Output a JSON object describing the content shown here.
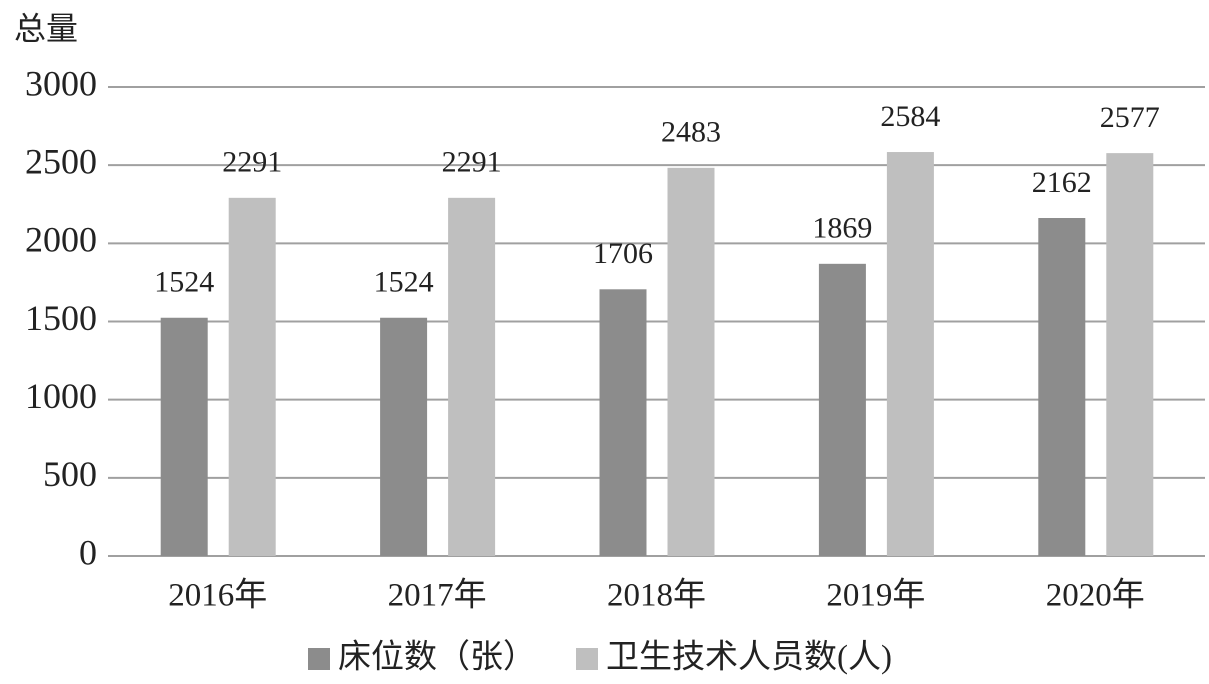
{
  "chart_data": {
    "type": "bar",
    "y_label": "总量",
    "categories": [
      "2016年",
      "2017年",
      "2018年",
      "2019年",
      "2020年"
    ],
    "series": [
      {
        "name": "床位数（张）",
        "color": "#8c8c8c",
        "values": [
          1524,
          1524,
          1706,
          1869,
          2162
        ]
      },
      {
        "name": "卫生技术人员数(人)",
        "color": "#bfbfbf",
        "values": [
          2291,
          2291,
          2483,
          2584,
          2577
        ]
      }
    ],
    "ylim": [
      0,
      3000
    ],
    "yticks": [
      0,
      500,
      1000,
      1500,
      2000,
      2500,
      3000
    ],
    "grid": true,
    "legend": "bottom"
  }
}
